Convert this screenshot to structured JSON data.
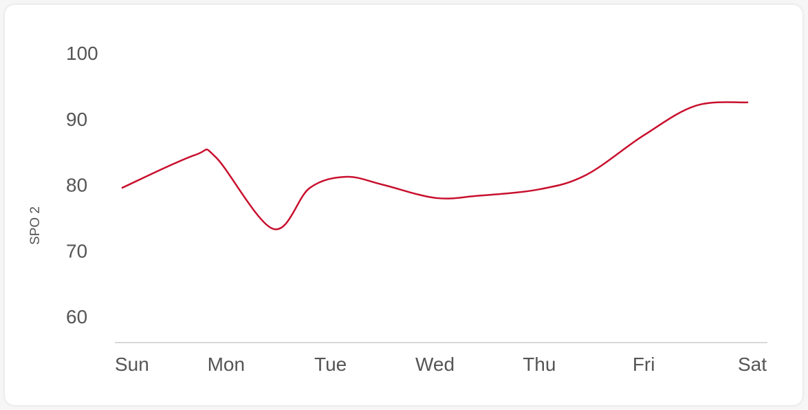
{
  "chart_data": {
    "type": "line",
    "title": "",
    "xlabel": "",
    "ylabel": "SPO 2",
    "categories": [
      "Sun",
      "Mon",
      "Tue",
      "Wed",
      "Thu",
      "Fri",
      "Sat"
    ],
    "y_ticks": [
      "100",
      "90",
      "80",
      "70",
      "60"
    ],
    "ylim": [
      60,
      100
    ],
    "grid": false,
    "legend": "none",
    "line_color": "#c8102e",
    "series": [
      {
        "x": [
          0,
          0.7,
          0.9,
          1.45,
          1.8,
          2.15,
          2.5,
          3.0,
          3.4,
          4.0,
          4.45,
          5.0,
          5.5,
          6.0
        ],
        "values": [
          79.5,
          84.5,
          84.2,
          73.3,
          79.5,
          81.2,
          80.0,
          78.0,
          78.3,
          79.3,
          81.5,
          87.5,
          92.0,
          92.5
        ]
      }
    ]
  }
}
